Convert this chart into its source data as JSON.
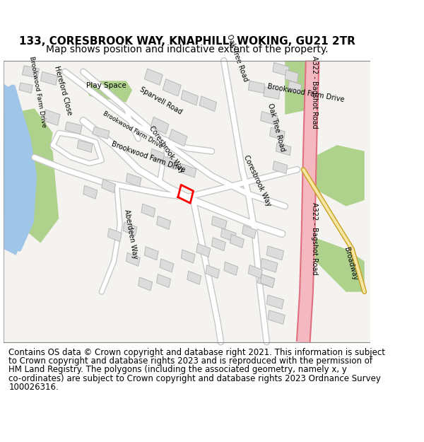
{
  "title_line1": "133, CORESBROOK WAY, KNAPHILL, WOKING, GU21 2TR",
  "title_line2": "Map shows position and indicative extent of the property.",
  "footer_lines": [
    "Contains OS data © Crown copyright and database right 2021. This information is subject",
    "to Crown copyright and database rights 2023 and is reproduced with the permission of",
    "HM Land Registry. The polygons (including the associated geometry, namely x, y",
    "co-ordinates) are subject to Crown copyright and database rights 2023 Ordnance Survey",
    "100026316."
  ],
  "map_bg": "#f5f3f0",
  "road_color": "#ffffff",
  "road_outline": "#c8c8c8",
  "building_color": "#dcdcdc",
  "building_outline": "#b8b8b8",
  "green_color": "#aed18c",
  "water_color": "#9fc5e8",
  "major_road_color": "#f4b8c1",
  "major_road_outline": "#e07080",
  "yellow_road_color": "#f5e6a3",
  "yellow_road_outline": "#c8a020",
  "red_polygon_color": "#ff0000",
  "title_fontsize": 11,
  "subtitle_fontsize": 10,
  "footer_fontsize": 8.5,
  "label_fontsize": 7
}
